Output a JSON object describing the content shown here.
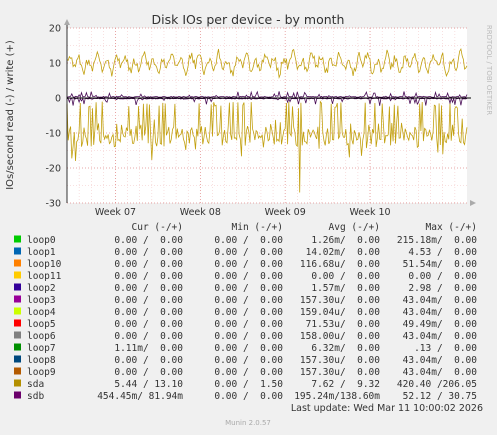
{
  "chart_data": {
    "type": "line",
    "title": "Disk IOs per device - by month",
    "ylabel": "IOs/second read (-) / write (+)",
    "side_label": "RRDTOOL / TOBI OETIKER",
    "ylim": [
      -30,
      20
    ],
    "yticks": [
      "20",
      "10",
      "0",
      "-10",
      "-20",
      "-30"
    ],
    "xlabels": [
      "Week 07",
      "Week 08",
      "Week 09",
      "Week 10"
    ],
    "grid": true,
    "x_start_day": 0,
    "x_end_day": 33,
    "x_label_days": [
      4,
      11,
      18,
      25
    ],
    "series": [
      {
        "name": "sda",
        "color": "#c2a00f",
        "write_mean": 10,
        "write_amp": 3,
        "read_mean": -7.6,
        "read_amp": 5,
        "read_spike": -27
      },
      {
        "name": "sdb",
        "color": "#4a0e57",
        "write_mean": 0.19,
        "read_mean": -0.08
      }
    ],
    "legend": {
      "headers": [
        "Cur (-/+)",
        "Min (-/+)",
        "Avg (-/+)",
        "Max (-/+)"
      ],
      "rows": [
        {
          "name": "loop0",
          "color": "#00cc00",
          "cur": "0.00 /  0.00",
          "min": "0.00 /  0.00",
          "avg": "1.26m/  0.00",
          "max": "215.18m/  0.00"
        },
        {
          "name": "loop1",
          "color": "#0066b3",
          "cur": "0.00 /  0.00",
          "min": "0.00 /  0.00",
          "avg": "14.02m/  0.00",
          "max": "4.53 /  0.00"
        },
        {
          "name": "loop10",
          "color": "#ff8000",
          "cur": "0.00 /  0.00",
          "min": "0.00 /  0.00",
          "avg": "116.68u/  0.00",
          "max": "51.54m/  0.00"
        },
        {
          "name": "loop11",
          "color": "#ffcc00",
          "cur": "0.00 /  0.00",
          "min": "0.00 /  0.00",
          "avg": "0.00 /  0.00",
          "max": "0.00 /  0.00"
        },
        {
          "name": "loop2",
          "color": "#330099",
          "cur": "0.00 /  0.00",
          "min": "0.00 /  0.00",
          "avg": "1.57m/  0.00",
          "max": "2.98 /  0.00"
        },
        {
          "name": "loop3",
          "color": "#990099",
          "cur": "0.00 /  0.00",
          "min": "0.00 /  0.00",
          "avg": "157.30u/  0.00",
          "max": "43.04m/  0.00"
        },
        {
          "name": "loop4",
          "color": "#ccff00",
          "cur": "0.00 /  0.00",
          "min": "0.00 /  0.00",
          "avg": "159.04u/  0.00",
          "max": "43.04m/  0.00"
        },
        {
          "name": "loop5",
          "color": "#ff0000",
          "cur": "0.00 /  0.00",
          "min": "0.00 /  0.00",
          "avg": "71.53u/  0.00",
          "max": "49.49m/  0.00"
        },
        {
          "name": "loop6",
          "color": "#808080",
          "cur": "0.00 /  0.00",
          "min": "0.00 /  0.00",
          "avg": "158.00u/  0.00",
          "max": "43.04m/  0.00"
        },
        {
          "name": "loop7",
          "color": "#008f00",
          "cur": "1.11m/  0.00",
          "min": "0.00 /  0.00",
          "avg": "6.32m/  0.00",
          "max": ".13 /  0.00"
        },
        {
          "name": "loop8",
          "color": "#00487d",
          "cur": "0.00 /  0.00",
          "min": "0.00 /  0.00",
          "avg": "157.30u/  0.00",
          "max": "43.04m/  0.00"
        },
        {
          "name": "loop9",
          "color": "#b35a00",
          "cur": "0.00 /  0.00",
          "min": "0.00 /  0.00",
          "avg": "157.30u/  0.00",
          "max": "43.04m/  0.00"
        },
        {
          "name": "sda",
          "color": "#b38f00",
          "cur": "5.44 / 13.10",
          "min": "0.00 /  1.50",
          "avg": "7.62 /  9.32",
          "max": "420.40 /206.05"
        },
        {
          "name": "sdb",
          "color": "#6b006b",
          "cur": "454.45m/ 81.94m",
          "min": "0.00 /  0.00",
          "avg": "195.24m/138.60m",
          "max": "52.12 / 30.75"
        }
      ]
    },
    "last_update": "Last update: Wed Mar 11 10:00:02 2026",
    "footer": "Munin 2.0.57"
  }
}
